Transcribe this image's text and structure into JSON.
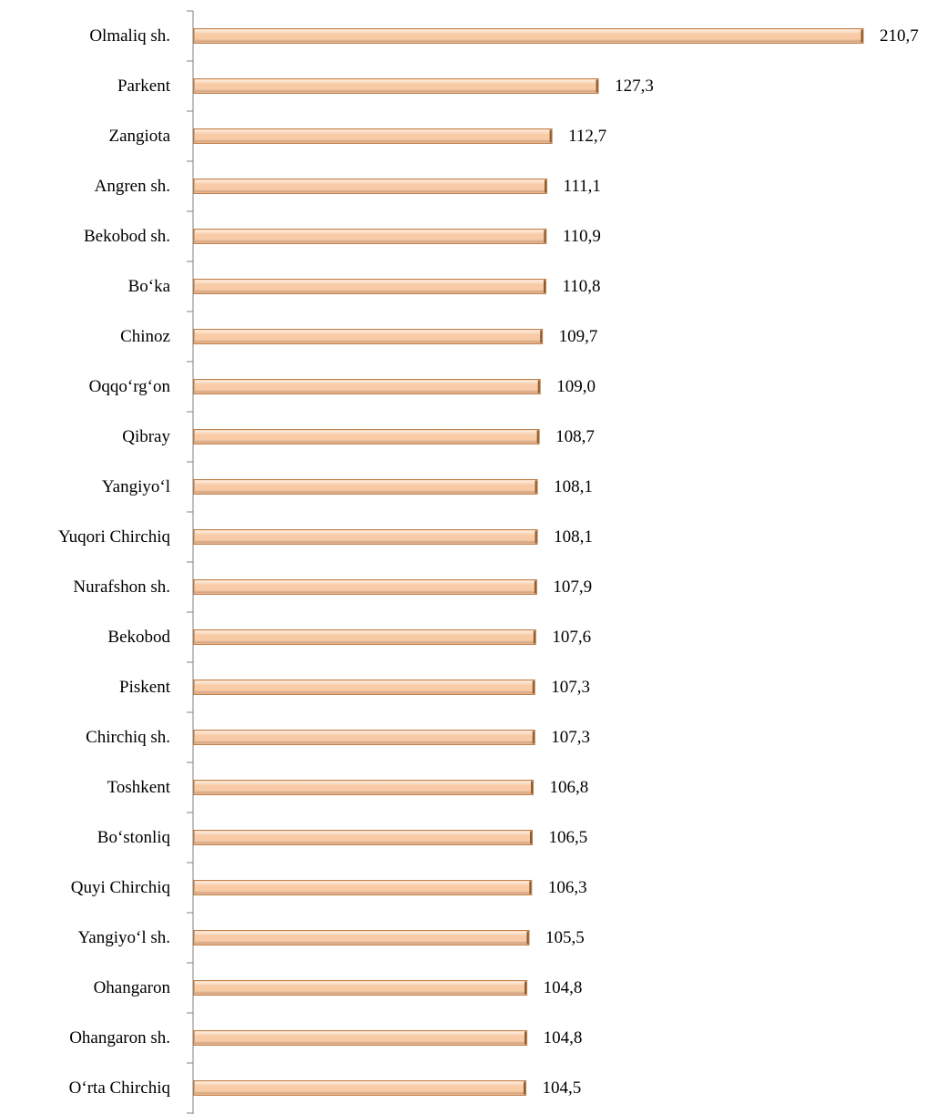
{
  "chart_data": {
    "type": "barh",
    "categories": [
      "Olmaliq sh.",
      "Parkent",
      "Zangiota",
      "Angren sh.",
      "Bekobod sh.",
      "Bo‘ka",
      "Chinoz",
      "Oqqo‘rg‘on",
      "Qibray",
      "Yangiyo‘l",
      "Yuqori Chirchiq",
      "Nurafshon sh.",
      "Bekobod",
      "Piskent",
      "Chirchiq sh.",
      "Toshkent",
      "Bo‘stonliq",
      "Quyi Chirchiq",
      "Yangiyo‘l sh.",
      "Ohangaron",
      "Ohangaron sh.",
      "O‘rta Chirchiq"
    ],
    "values": [
      210.7,
      127.3,
      112.7,
      111.1,
      110.9,
      110.8,
      109.7,
      109.0,
      108.7,
      108.1,
      108.1,
      107.9,
      107.6,
      107.3,
      107.3,
      106.8,
      106.5,
      106.3,
      105.5,
      104.8,
      104.8,
      104.5
    ],
    "value_labels": [
      "210,7",
      "127,3",
      "112,7",
      "111,1",
      "110,9",
      "110,8",
      "109,7",
      "109,0",
      "108,7",
      "108,1",
      "108,1",
      "107,9",
      "107,6",
      "107,3",
      "107,3",
      "106,8",
      "106,5",
      "106,3",
      "105,5",
      "104,8",
      "104,8",
      "104,5"
    ],
    "color": "#f8cba6"
  }
}
